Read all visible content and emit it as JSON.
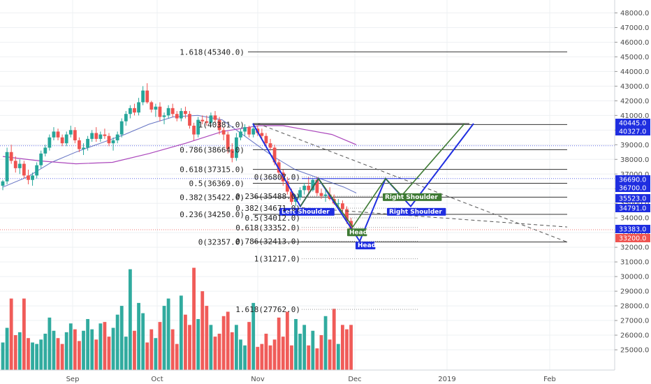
{
  "colors": {
    "up": "#26a69a",
    "down": "#ef5350",
    "ma_fast": "#3f51b5",
    "ma_slow": "#ab47bc",
    "pattern_blue": "#1f2ee0",
    "pattern_green": "#3e7a34",
    "dashed": "#555555",
    "fib_line": "#333333"
  },
  "chart_data": {
    "type": "candlestick",
    "title": "",
    "ylim": [
      24000,
      48500
    ],
    "yticks": [
      "48000.0",
      "47000.0",
      "46000.0",
      "45000.0",
      "44000.0",
      "43000.0",
      "42000.0",
      "41000.0",
      "40000.0",
      "39000.0",
      "38000.0",
      "37000.0",
      "36000.0",
      "35000.0",
      "34000.0",
      "33000.0",
      "32000.0",
      "31000.0",
      "30000.0",
      "29000.0",
      "28000.0",
      "27000.0",
      "26000.0",
      "25000.0"
    ],
    "xtick_labels": [
      "Sep",
      "Oct",
      "Nov",
      "Dec",
      "2019",
      "Feb"
    ],
    "grid": true,
    "price_tags": [
      {
        "label": "40445.0",
        "value": 40445,
        "color": "#1f2ee0"
      },
      {
        "label": "40327.0",
        "value": 40327,
        "color": "#1f2ee0"
      },
      {
        "label": "36690.0",
        "value": 36690,
        "color": "#1f2ee0"
      },
      {
        "label": "36700.0",
        "value": 36700,
        "color": "#1f2ee0"
      },
      {
        "label": "35523.0",
        "value": 35523,
        "color": "#1f2ee0"
      },
      {
        "label": "34791.0",
        "value": 34791,
        "color": "#1f2ee0"
      },
      {
        "label": "33383.0",
        "value": 33383,
        "color": "#1f2ee0"
      },
      {
        "label": "33200.0",
        "value": 33200,
        "color": "#ef5350"
      }
    ],
    "fib_levels_upper": [
      {
        "label": "1.618(45340.0)",
        "value": 45340
      },
      {
        "label": "1(40381.0)",
        "value": 40381
      },
      {
        "label": "0.786(38664.0)",
        "value": 38664
      },
      {
        "label": "0.618(37315.0)",
        "value": 37315
      },
      {
        "label": "0.5(36369.0)",
        "value": 36369
      },
      {
        "label": "0.382(35422.0)",
        "value": 35422
      },
      {
        "label": "0.236(34250.0)",
        "value": 34250
      },
      {
        "label": "0(32357.0)",
        "value": 32357
      }
    ],
    "fib_levels_lower": [
      {
        "label": "0(36807.0)",
        "value": 36807
      },
      {
        "label": "0.236(35488.0)",
        "value": 35488
      },
      {
        "label": "0.382(34671.0)",
        "value": 34671
      },
      {
        "label": "0.5(34012.0)",
        "value": 34012
      },
      {
        "label": "0.618(33352.0)",
        "value": 33352
      },
      {
        "label": "0.786(32413.0)",
        "value": 32413
      },
      {
        "label": "1(31217.0)",
        "value": 31217
      },
      {
        "label": "1.618(27762.0)",
        "value": 27762
      }
    ],
    "pattern_labels": [
      {
        "text": "Left Shoulder",
        "color": "#1f2ee0"
      },
      {
        "text": "Head",
        "color": "#3e7a34"
      },
      {
        "text": "Head",
        "color": "#1f2ee0"
      },
      {
        "text": "Right Shoulder",
        "color": "#3e7a34"
      },
      {
        "text": "Right Shoulder",
        "color": "#1f2ee0"
      }
    ],
    "candles": [
      [
        36200,
        36600,
        35900,
        36500
      ],
      [
        36500,
        38800,
        36300,
        38500
      ],
      [
        38500,
        39000,
        37700,
        37900
      ],
      [
        37900,
        38200,
        37100,
        37400
      ],
      [
        37400,
        38000,
        37000,
        37700
      ],
      [
        37700,
        37900,
        36700,
        36900
      ],
      [
        36900,
        37300,
        36300,
        36600
      ],
      [
        36600,
        37100,
        36200,
        36900
      ],
      [
        36900,
        37800,
        36700,
        37600
      ],
      [
        37600,
        38600,
        37400,
        38400
      ],
      [
        38400,
        39000,
        38200,
        38800
      ],
      [
        38800,
        39700,
        38600,
        39500
      ],
      [
        39500,
        40200,
        39300,
        39900
      ],
      [
        39900,
        40100,
        39300,
        39500
      ],
      [
        39500,
        39700,
        38900,
        39100
      ],
      [
        39100,
        39900,
        38900,
        39700
      ],
      [
        39700,
        40300,
        39500,
        40000
      ],
      [
        40000,
        40200,
        39100,
        39300
      ],
      [
        39300,
        39500,
        38500,
        38700
      ],
      [
        38700,
        39100,
        38300,
        38800
      ],
      [
        38800,
        39600,
        38600,
        39400
      ],
      [
        39400,
        40000,
        39200,
        39800
      ],
      [
        39800,
        40200,
        39200,
        39400
      ],
      [
        39400,
        39900,
        39200,
        39700
      ],
      [
        39700,
        40100,
        39400,
        39600
      ],
      [
        39600,
        39800,
        38900,
        39100
      ],
      [
        39100,
        39500,
        38600,
        39300
      ],
      [
        39300,
        39900,
        39100,
        39700
      ],
      [
        39700,
        40800,
        39500,
        40600
      ],
      [
        40600,
        41300,
        40300,
        41100
      ],
      [
        41100,
        41700,
        40800,
        41500
      ],
      [
        41500,
        41800,
        41000,
        41200
      ],
      [
        41200,
        42200,
        41000,
        41900
      ],
      [
        41900,
        43000,
        41700,
        42700
      ],
      [
        42700,
        43200,
        41800,
        41900
      ],
      [
        41900,
        42000,
        41200,
        41400
      ],
      [
        41400,
        41800,
        40900,
        41600
      ],
      [
        41600,
        41900,
        40600,
        40900
      ],
      [
        40900,
        41200,
        40400,
        41000
      ],
      [
        41000,
        41700,
        40800,
        41500
      ],
      [
        41500,
        41800,
        40900,
        41100
      ],
      [
        41100,
        41300,
        40600,
        40800
      ],
      [
        40800,
        41500,
        40600,
        41300
      ],
      [
        41300,
        41600,
        40800,
        41100
      ],
      [
        41100,
        41300,
        40100,
        40300
      ],
      [
        40300,
        40500,
        39300,
        39700
      ],
      [
        39700,
        40900,
        39500,
        40700
      ],
      [
        40700,
        41000,
        40400,
        40600
      ],
      [
        40600,
        41000,
        40300,
        40500
      ],
      [
        40500,
        41200,
        40300,
        41000
      ],
      [
        41000,
        41300,
        40500,
        40700
      ],
      [
        40700,
        40900,
        39700,
        40000
      ],
      [
        40000,
        40200,
        39300,
        39700
      ],
      [
        39700,
        39900,
        38400,
        38700
      ],
      [
        38700,
        39100,
        37800,
        38100
      ],
      [
        38100,
        39800,
        37900,
        39500
      ],
      [
        39500,
        40100,
        39300,
        39900
      ],
      [
        39900,
        40400,
        39600,
        40200
      ],
      [
        40200,
        40300,
        39500,
        39700
      ],
      [
        39700,
        40300,
        39500,
        40100
      ],
      [
        40100,
        40300,
        39600,
        39800
      ],
      [
        39800,
        40100,
        39400,
        39600
      ],
      [
        39600,
        39800,
        38900,
        39100
      ],
      [
        39100,
        39400,
        38600,
        38800
      ],
      [
        38800,
        39000,
        37600,
        37800
      ],
      [
        37800,
        38000,
        36900,
        37100
      ],
      [
        37100,
        37300,
        36200,
        36500
      ],
      [
        36500,
        36800,
        35600,
        35800
      ],
      [
        35800,
        36000,
        34900,
        35100
      ],
      [
        35100,
        35600,
        34800,
        35400
      ],
      [
        35400,
        36100,
        35200,
        35900
      ],
      [
        35900,
        36400,
        35600,
        36200
      ],
      [
        36200,
        36800,
        35700,
        35900
      ],
      [
        35900,
        36700,
        35800,
        36600
      ],
      [
        36600,
        36800,
        35500,
        35700
      ],
      [
        35700,
        36000,
        35300,
        35500
      ],
      [
        35500,
        35900,
        35100,
        35600
      ],
      [
        35600,
        36100,
        35200,
        35300
      ],
      [
        35300,
        35600,
        34900,
        35000
      ],
      [
        35000,
        35300,
        34700,
        35000
      ],
      [
        35000,
        35200,
        34400,
        34600
      ],
      [
        34600,
        34800,
        33600,
        33800
      ],
      [
        33800,
        34000,
        32900,
        33200
      ]
    ],
    "volume": [
      25500,
      26500,
      28500,
      26000,
      26200,
      28500,
      25800,
      25500,
      25400,
      25700,
      26100,
      27200,
      26300,
      25800,
      25400,
      26200,
      26800,
      26400,
      25600,
      26300,
      27100,
      26400,
      25700,
      26800,
      26900,
      25900,
      26500,
      27400,
      28000,
      25900,
      30500,
      26300,
      28200,
      27500,
      25500,
      26400,
      25800,
      26900,
      28000,
      28500,
      26400,
      25400,
      28700,
      27400,
      26700,
      30600,
      27100,
      29000,
      28000,
      26700,
      25900,
      26100,
      27300,
      27600,
      26200,
      26700,
      25700,
      25300,
      26900,
      28200,
      25200,
      25400,
      26100,
      25300,
      25700,
      27200,
      25900,
      27600,
      25300,
      27100,
      26100,
      26700,
      25300,
      26300,
      25100,
      26000,
      27300,
      25700,
      27800,
      25400,
      26700,
      26400,
      26700
    ],
    "ma_fast": [
      [
        0,
        36100
      ],
      [
        10,
        36800
      ],
      [
        20,
        37800
      ],
      [
        30,
        38500
      ],
      [
        40,
        39100
      ],
      [
        50,
        39700
      ],
      [
        60,
        40400
      ],
      [
        70,
        40900
      ],
      [
        80,
        41000
      ],
      [
        90,
        40700
      ],
      [
        100,
        39500
      ],
      [
        110,
        38300
      ],
      [
        120,
        37300
      ],
      [
        130,
        36700
      ],
      [
        140,
        36100
      ],
      [
        145,
        35700
      ]
    ],
    "ma_slow": [
      [
        0,
        38200
      ],
      [
        15,
        37900
      ],
      [
        30,
        37700
      ],
      [
        45,
        37800
      ],
      [
        60,
        38400
      ],
      [
        75,
        39100
      ],
      [
        90,
        39900
      ],
      [
        105,
        40300
      ],
      [
        115,
        40300
      ],
      [
        125,
        40000
      ],
      [
        135,
        39700
      ],
      [
        145,
        39000
      ]
    ]
  }
}
